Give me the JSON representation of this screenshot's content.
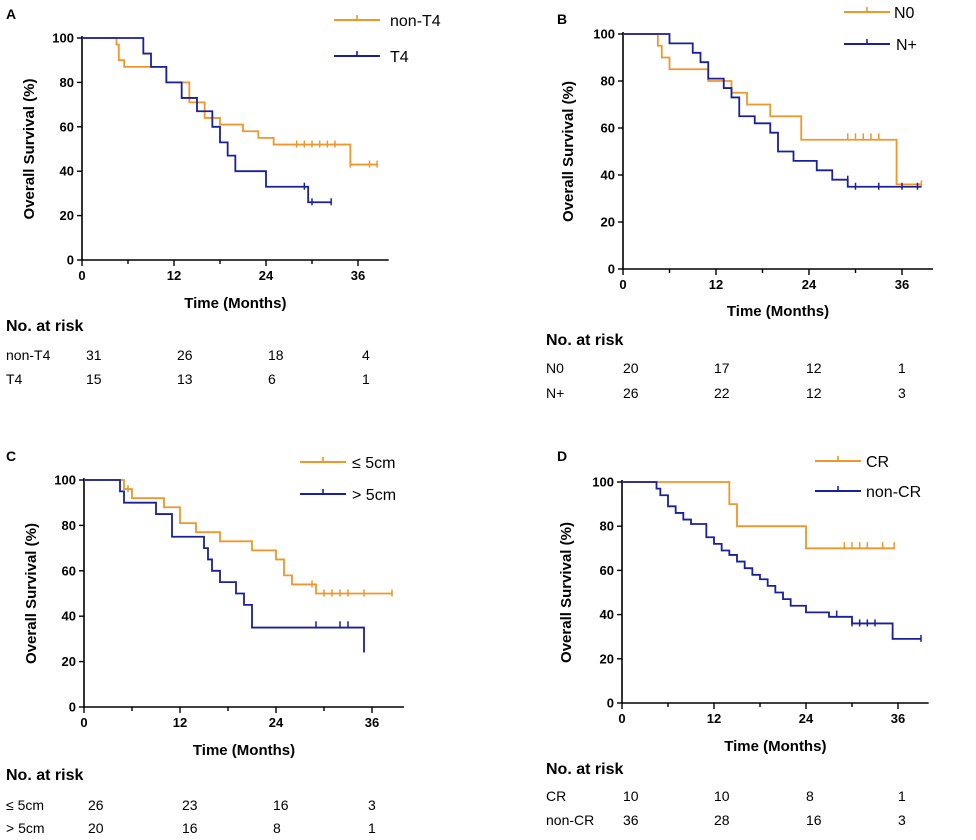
{
  "colors": {
    "series_1": "#F0962A",
    "series_2": "#1A1F9C",
    "axis": "#000000"
  },
  "chart_data": [
    {
      "type": "line",
      "panel": "A",
      "xlabel": "Time (Months)",
      "ylabel": "Overall Survival (%)",
      "xlim": [
        0,
        40
      ],
      "ylim": [
        0,
        100
      ],
      "xticks": [
        0,
        12,
        24,
        36
      ],
      "yticks": [
        0,
        20,
        40,
        60,
        80,
        100
      ],
      "legend": "top-right",
      "series": [
        {
          "name": "non-T4",
          "x": [
            0,
            4.5,
            4.8,
            5.5,
            11,
            14,
            16,
            18,
            21,
            23,
            25,
            35,
            35,
            38.5
          ],
          "y": [
            100,
            97,
            90,
            87,
            80,
            71,
            64,
            61,
            58,
            55,
            52,
            52,
            43,
            43
          ],
          "censored": [
            [
              28,
              52
            ],
            [
              29,
              52
            ],
            [
              30,
              52
            ],
            [
              31,
              52
            ],
            [
              32,
              52
            ],
            [
              33,
              52
            ],
            [
              35,
              43
            ],
            [
              37.5,
              43
            ],
            [
              38.5,
              43
            ]
          ]
        },
        {
          "name": "T4",
          "x": [
            0,
            8,
            9,
            11,
            13,
            15,
            17,
            18,
            19,
            20,
            24,
            29,
            29.5,
            32.5
          ],
          "y": [
            100,
            93,
            87,
            80,
            73,
            67,
            60,
            53,
            47,
            40,
            33,
            33,
            26,
            26
          ],
          "censored": [
            [
              29,
              33
            ],
            [
              30,
              26
            ],
            [
              32.5,
              26
            ]
          ]
        }
      ],
      "risk_table": {
        "title": "No. at risk",
        "rows": [
          {
            "label": "non-T4",
            "values": [
              "31",
              "26",
              "18",
              "4"
            ]
          },
          {
            "label": "T4",
            "values": [
              "15",
              "13",
              "6",
              "1"
            ]
          }
        ]
      }
    },
    {
      "type": "line",
      "panel": "B",
      "xlabel": "Time (Months)",
      "ylabel": "Overall Survival (%)",
      "xlim": [
        0,
        40
      ],
      "ylim": [
        0,
        100
      ],
      "xticks": [
        0,
        12,
        24,
        36
      ],
      "yticks": [
        0,
        20,
        40,
        60,
        80,
        100
      ],
      "legend": "top-right",
      "series": [
        {
          "name": "N0",
          "x": [
            0,
            4.5,
            5,
            6,
            11,
            14,
            16,
            19,
            23,
            35,
            35.3,
            38.5
          ],
          "y": [
            100,
            95,
            90,
            85,
            80,
            75,
            70,
            65,
            55,
            55,
            36,
            36
          ],
          "censored": [
            [
              29,
              56
            ],
            [
              30,
              56
            ],
            [
              31,
              56
            ],
            [
              32,
              56
            ],
            [
              33,
              56
            ],
            [
              35.3,
              38
            ],
            [
              38.5,
              36
            ]
          ]
        },
        {
          "name": "N+",
          "x": [
            0,
            6,
            9,
            10,
            11,
            13,
            14,
            15,
            17,
            19,
            20,
            22,
            25,
            27,
            29,
            38.5
          ],
          "y": [
            100,
            96,
            92,
            88,
            81,
            77,
            73,
            65,
            62,
            58,
            50,
            46,
            42,
            38,
            35,
            35
          ],
          "censored": [
            [
              29,
              38
            ],
            [
              30,
              35
            ],
            [
              33,
              35
            ],
            [
              36,
              35
            ],
            [
              38,
              35
            ]
          ]
        }
      ],
      "risk_table": {
        "title": "No. at risk",
        "rows": [
          {
            "label": "N0",
            "values": [
              "20",
              "17",
              "12",
              "1"
            ]
          },
          {
            "label": "N+",
            "values": [
              "26",
              "22",
              "12",
              "3"
            ]
          }
        ]
      }
    },
    {
      "type": "line",
      "panel": "C",
      "xlabel": "Time (Months)",
      "ylabel": "Overall Survival (%)",
      "xlim": [
        0,
        40
      ],
      "ylim": [
        0,
        100
      ],
      "xticks": [
        0,
        12,
        24,
        36
      ],
      "yticks": [
        0,
        20,
        40,
        60,
        80,
        100
      ],
      "legend": "top-right",
      "series": [
        {
          "name": "≤ 5cm",
          "x": [
            0,
            5,
            6,
            10,
            12,
            14,
            17,
            21,
            24,
            25,
            26,
            29,
            38.5
          ],
          "y": [
            100,
            96,
            92,
            88,
            81,
            77,
            73,
            69,
            65,
            58,
            54,
            50,
            50
          ],
          "censored": [
            [
              5.5,
              96
            ],
            [
              28.5,
              54
            ],
            [
              30,
              50
            ],
            [
              31,
              50
            ],
            [
              32,
              50
            ],
            [
              33,
              50
            ],
            [
              35,
              50
            ],
            [
              38.5,
              50
            ]
          ]
        },
        {
          "name": "> 5cm",
          "x": [
            0,
            4.5,
            5,
            9,
            11,
            15,
            15.5,
            16,
            17,
            19,
            20,
            21,
            35,
            35
          ],
          "y": [
            100,
            95,
            90,
            85,
            75,
            70,
            65,
            60,
            55,
            50,
            45,
            35,
            35,
            24
          ],
          "censored": [
            [
              29,
              36
            ],
            [
              32,
              36
            ],
            [
              33,
              36
            ]
          ]
        }
      ],
      "risk_table": {
        "title": "No. at risk",
        "rows": [
          {
            "label": "≤ 5cm",
            "values": [
              "26",
              "23",
              "16",
              "3"
            ]
          },
          {
            "label": "> 5cm",
            "values": [
              "20",
              "16",
              "8",
              "1"
            ]
          }
        ]
      }
    },
    {
      "type": "line",
      "panel": "D",
      "xlabel": "Time (Months)",
      "ylabel": "Overall Survival (%)",
      "xlim": [
        0,
        40
      ],
      "ylim": [
        0,
        100
      ],
      "xticks": [
        0,
        12,
        24,
        36
      ],
      "yticks": [
        0,
        20,
        40,
        60,
        80,
        100
      ],
      "legend": "top-right",
      "series": [
        {
          "name": "CR",
          "x": [
            0,
            14,
            15,
            24,
            35.5
          ],
          "y": [
            100,
            90,
            80,
            70,
            70
          ],
          "censored": [
            [
              29,
              71
            ],
            [
              30,
              71
            ],
            [
              31,
              71
            ],
            [
              32,
              71
            ],
            [
              34,
              71
            ],
            [
              35.5,
              71
            ]
          ]
        },
        {
          "name": "non-CR",
          "x": [
            0,
            4.5,
            5,
            6,
            7,
            8,
            9,
            11,
            12,
            13,
            14,
            15,
            16,
            17,
            18,
            19,
            20,
            21,
            22,
            24,
            27,
            30,
            35,
            35.3,
            39
          ],
          "y": [
            100,
            97,
            94,
            89,
            86,
            83,
            81,
            75,
            72,
            69,
            67,
            64,
            61,
            58,
            56,
            53,
            50,
            47,
            44,
            41,
            39,
            36,
            36,
            29,
            29
          ],
          "censored": [
            [
              28,
              40
            ],
            [
              30,
              36
            ],
            [
              31,
              36
            ],
            [
              32,
              36
            ],
            [
              33,
              36
            ],
            [
              35.3,
              30
            ],
            [
              39,
              29
            ]
          ]
        }
      ],
      "risk_table": {
        "title": "No. at risk",
        "rows": [
          {
            "label": "CR",
            "values": [
              "10",
              "10",
              "8",
              "1"
            ]
          },
          {
            "label": "non-CR",
            "values": [
              "36",
              "28",
              "16",
              "3"
            ]
          }
        ]
      }
    }
  ]
}
